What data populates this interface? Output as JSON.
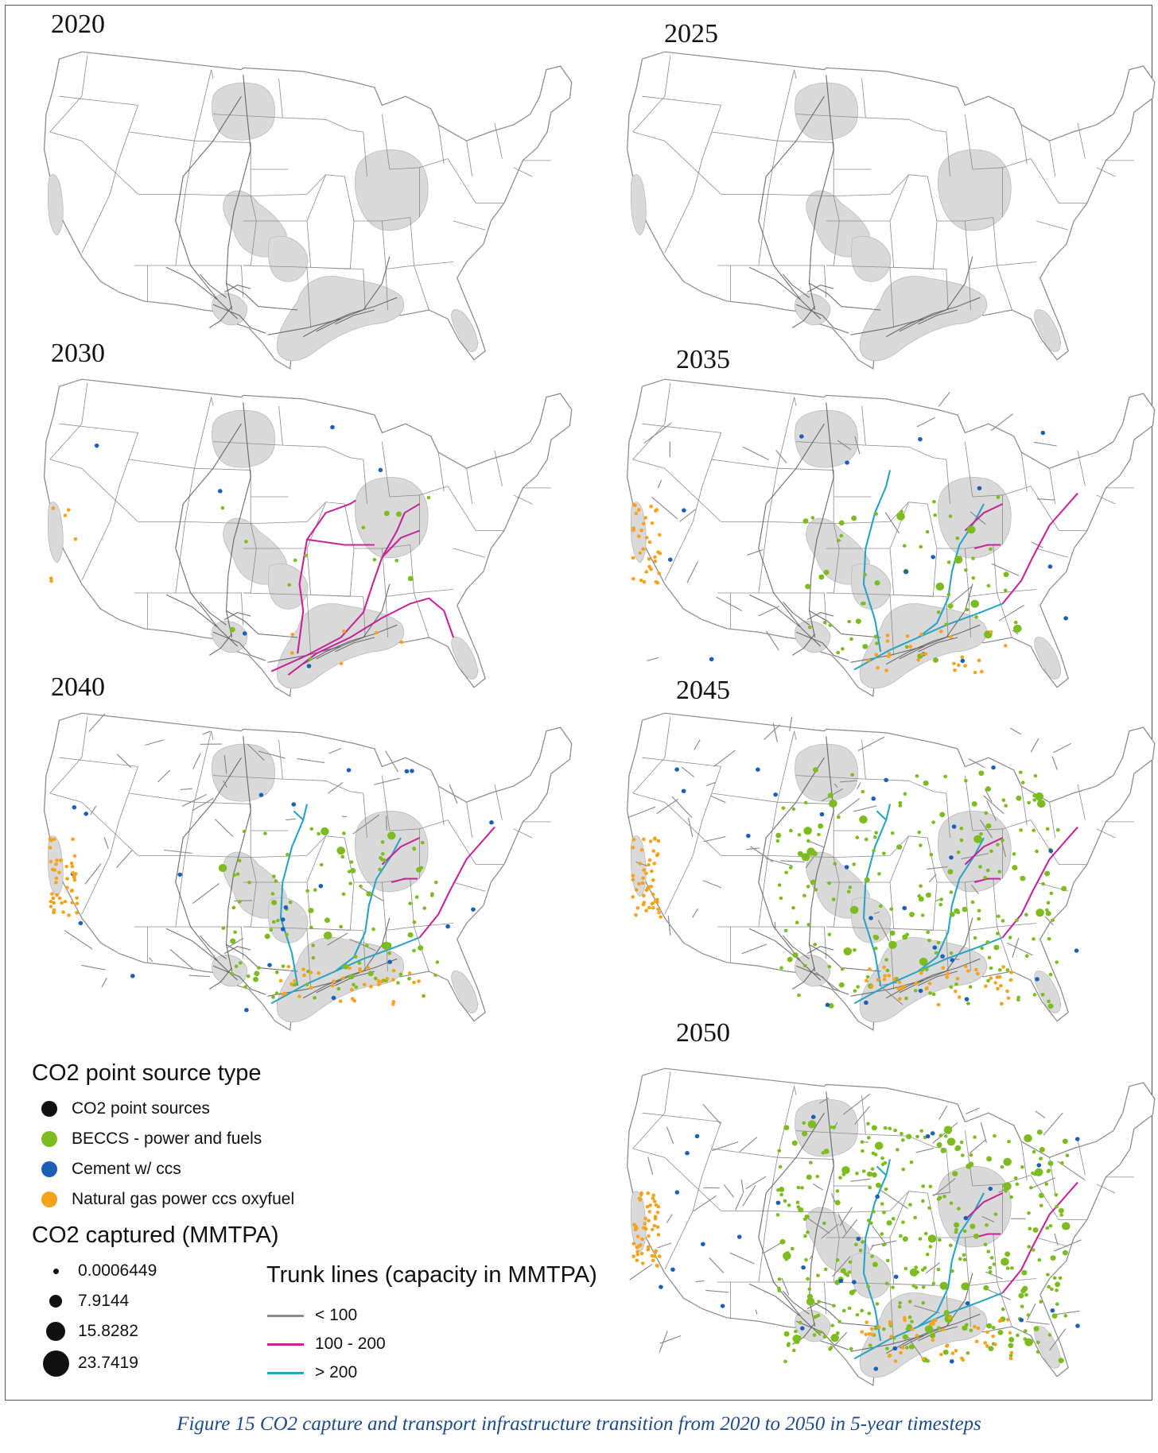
{
  "panels": [
    {
      "year": "2020",
      "stage": 0
    },
    {
      "year": "2025",
      "stage": 0
    },
    {
      "year": "2030",
      "stage": 1
    },
    {
      "year": "2035",
      "stage": 2
    },
    {
      "year": "2040",
      "stage": 3
    },
    {
      "year": "2045",
      "stage": 4
    },
    {
      "year": "2050",
      "stage": 5
    }
  ],
  "legend": {
    "source_title": "CO2 point source type",
    "source_types": [
      {
        "label": "CO2 point sources",
        "color": "#111111"
      },
      {
        "label": "BECCS - power and fuels",
        "color": "#7cbc1e"
      },
      {
        "label": "Cement w/ ccs",
        "color": "#1b5fb8"
      },
      {
        "label": "Natural gas power ccs oxyfuel",
        "color": "#f5a31a"
      }
    ],
    "captured_title": "CO2 captured (MMTPA)",
    "captured_sizes": [
      "0.0006449",
      "7.9144",
      "15.8282",
      "23.7419"
    ],
    "trunk_title": "Trunk lines (capacity in MMTPA)",
    "trunk_classes": [
      {
        "label": "< 100",
        "color": "#8a8a8a"
      },
      {
        "label": "100 - 200",
        "color": "#c4259a"
      },
      {
        "label": "> 200",
        "color": "#2aa3c4"
      }
    ]
  },
  "caption": "Figure 15  CO2 capture and transport infrastructure transition from 2020 to 2050 in 5-year timesteps",
  "colors": {
    "basin_fill": "#d9d9d9",
    "state_line": "#8c8c8c",
    "existing_pipe": "#5a5a5a"
  }
}
